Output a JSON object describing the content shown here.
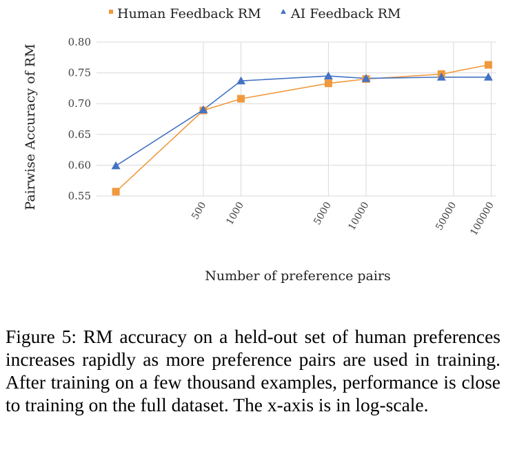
{
  "chart_data": {
    "type": "line",
    "xlabel": "Number of preference pairs",
    "ylabel": "Pairwise Accuracy of RM",
    "x_scale": "log",
    "xlim": [
      70,
      110000
    ],
    "ylim": [
      0.55,
      0.8
    ],
    "x_tick_values": [
      500,
      1000,
      5000,
      10000,
      50000,
      100000
    ],
    "x_tick_labels": [
      "500",
      "1000",
      "5000",
      "10000",
      "50000",
      "100000"
    ],
    "y_tick_values": [
      0.55,
      0.6,
      0.65,
      0.7,
      0.75,
      0.8
    ],
    "y_tick_labels": [
      "0.55",
      "0.60",
      "0.65",
      "0.70",
      "0.75",
      "0.80"
    ],
    "grid": true,
    "legend_position": "top",
    "series": [
      {
        "name": "Human Feedback RM",
        "color": "#F0993C",
        "marker": "square",
        "x": [
          100,
          500,
          1000,
          5000,
          10000,
          40000,
          95000
        ],
        "y": [
          0.557,
          0.689,
          0.708,
          0.733,
          0.74,
          0.748,
          0.763
        ]
      },
      {
        "name": "AI Feedback RM",
        "color": "#4472C4",
        "marker": "triangle",
        "x": [
          100,
          500,
          1000,
          5000,
          10000,
          40000,
          95000
        ],
        "y": [
          0.599,
          0.69,
          0.737,
          0.745,
          0.741,
          0.743,
          0.743
        ]
      }
    ]
  },
  "caption": "Figure 5: RM accuracy on a held-out set of human preferences increases rapidly as more preference pairs are used in training. After training on a few thousand examples, performance is close to training on the full dataset. The x-axis is in log-scale."
}
